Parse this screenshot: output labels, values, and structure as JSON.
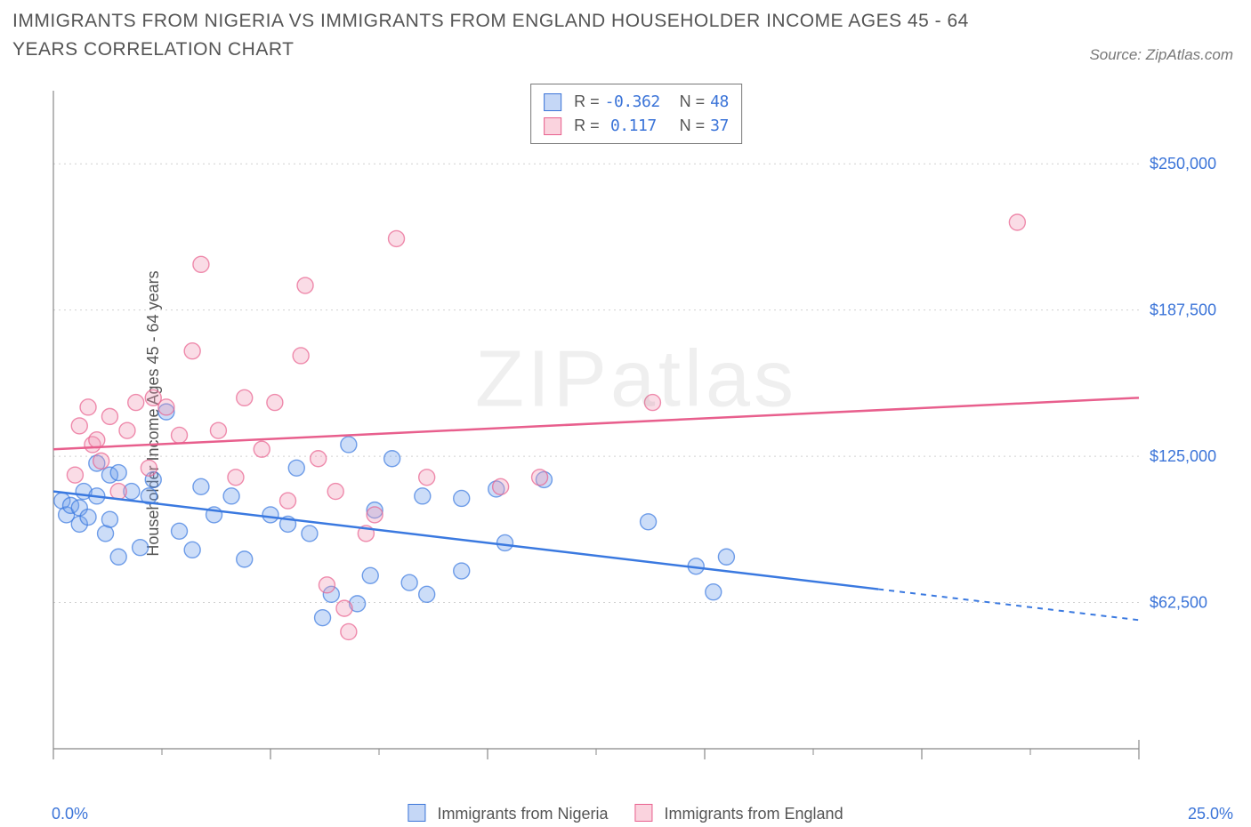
{
  "title": "IMMIGRANTS FROM NIGERIA VS IMMIGRANTS FROM ENGLAND HOUSEHOLDER INCOME AGES 45 - 64 YEARS CORRELATION CHART",
  "source": "Source: ZipAtlas.com",
  "watermark": "ZIPatlas",
  "y_axis": {
    "label": "Householder Income Ages 45 - 64 years"
  },
  "x_axis": {
    "min_label": "0.0%",
    "max_label": "25.0%"
  },
  "legend_bottom": {
    "series_a": "Immigrants from Nigeria",
    "series_b": "Immigrants from England"
  },
  "legend_top": {
    "r_label_a": "R = ",
    "r_val_a": "-0.362",
    "n_label_a": "N = ",
    "n_val_a": "48",
    "r_label_b": "R = ",
    "r_val_b": "0.117",
    "n_label_b": "N = ",
    "n_val_b": "37"
  },
  "chart": {
    "type": "scatter",
    "background_color": "#ffffff",
    "grid_color": "#d0d0d0",
    "axis_color": "#888888",
    "tick_label_color": "#3b74d8",
    "x_range": [
      0,
      25
    ],
    "y_range": [
      0,
      281250
    ],
    "x_major_ticks": [
      0,
      5,
      10,
      15,
      20,
      25
    ],
    "x_minor_ticks": [
      2.5,
      7.5,
      12.5,
      17.5,
      22.5
    ],
    "y_ticks": [
      62500,
      125000,
      187500,
      250000
    ],
    "y_tick_labels": [
      "$62,500",
      "$125,000",
      "$187,500",
      "$250,000"
    ],
    "marker_radius": 9,
    "marker_opacity": 0.35,
    "series": [
      {
        "name": "nigeria",
        "fill": "#6d9eea",
        "stroke": "#3a79e0",
        "trend": {
          "y_at_xmin": 110000,
          "y_at_xmax": 55000,
          "solid_until_x": 19
        },
        "points": [
          [
            0.2,
            106000
          ],
          [
            0.3,
            100000
          ],
          [
            0.4,
            104000
          ],
          [
            0.6,
            96000
          ],
          [
            0.6,
            103000
          ],
          [
            0.7,
            110000
          ],
          [
            0.8,
            99000
          ],
          [
            1.0,
            122000
          ],
          [
            1.0,
            108000
          ],
          [
            1.2,
            92000
          ],
          [
            1.3,
            117000
          ],
          [
            1.3,
            98000
          ],
          [
            1.5,
            118000
          ],
          [
            1.5,
            82000
          ],
          [
            1.8,
            110000
          ],
          [
            2.0,
            86000
          ],
          [
            2.2,
            108000
          ],
          [
            2.3,
            115000
          ],
          [
            2.6,
            144000
          ],
          [
            2.9,
            93000
          ],
          [
            3.2,
            85000
          ],
          [
            3.4,
            112000
          ],
          [
            3.7,
            100000
          ],
          [
            4.1,
            108000
          ],
          [
            4.4,
            81000
          ],
          [
            5.0,
            100000
          ],
          [
            5.4,
            96000
          ],
          [
            5.6,
            120000
          ],
          [
            5.9,
            92000
          ],
          [
            6.2,
            56000
          ],
          [
            6.4,
            66000
          ],
          [
            6.8,
            130000
          ],
          [
            7.0,
            62000
          ],
          [
            7.3,
            74000
          ],
          [
            7.4,
            102000
          ],
          [
            7.8,
            124000
          ],
          [
            8.2,
            71000
          ],
          [
            8.5,
            108000
          ],
          [
            8.6,
            66000
          ],
          [
            9.4,
            76000
          ],
          [
            9.4,
            107000
          ],
          [
            10.2,
            111000
          ],
          [
            10.4,
            88000
          ],
          [
            11.3,
            115000
          ],
          [
            13.7,
            97000
          ],
          [
            14.8,
            78000
          ],
          [
            15.2,
            67000
          ],
          [
            15.5,
            82000
          ]
        ]
      },
      {
        "name": "england",
        "fill": "#f29ab6",
        "stroke": "#e85f8d",
        "trend": {
          "y_at_xmin": 128000,
          "y_at_xmax": 150000,
          "solid_until_x": 25
        },
        "points": [
          [
            0.5,
            117000
          ],
          [
            0.6,
            138000
          ],
          [
            0.8,
            146000
          ],
          [
            0.9,
            130000
          ],
          [
            1.0,
            132000
          ],
          [
            1.1,
            123000
          ],
          [
            1.3,
            142000
          ],
          [
            1.5,
            110000
          ],
          [
            1.7,
            136000
          ],
          [
            1.9,
            148000
          ],
          [
            2.2,
            120000
          ],
          [
            2.3,
            150000
          ],
          [
            2.6,
            146000
          ],
          [
            2.9,
            134000
          ],
          [
            3.2,
            170000
          ],
          [
            3.4,
            207000
          ],
          [
            3.8,
            136000
          ],
          [
            4.2,
            116000
          ],
          [
            4.4,
            150000
          ],
          [
            4.8,
            128000
          ],
          [
            5.1,
            148000
          ],
          [
            5.4,
            106000
          ],
          [
            5.7,
            168000
          ],
          [
            5.8,
            198000
          ],
          [
            6.1,
            124000
          ],
          [
            6.3,
            70000
          ],
          [
            6.5,
            110000
          ],
          [
            6.7,
            60000
          ],
          [
            6.8,
            50000
          ],
          [
            7.2,
            92000
          ],
          [
            7.4,
            100000
          ],
          [
            7.9,
            218000
          ],
          [
            8.6,
            116000
          ],
          [
            10.3,
            112000
          ],
          [
            11.2,
            116000
          ],
          [
            13.8,
            148000
          ],
          [
            22.2,
            225000
          ]
        ]
      }
    ]
  }
}
